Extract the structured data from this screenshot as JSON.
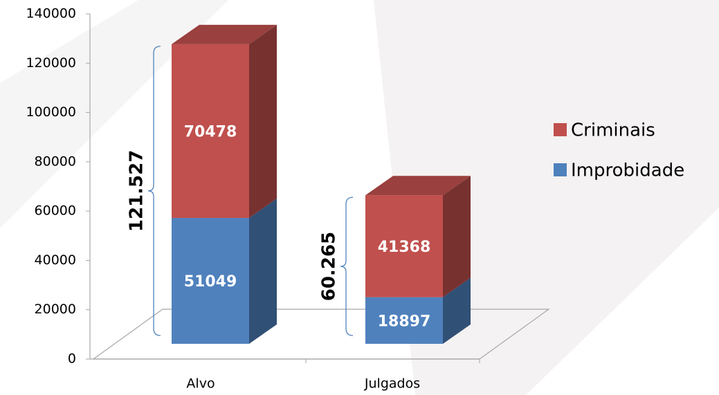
{
  "chart_data": {
    "type": "bar3d_stacked",
    "categories": [
      "Alvo",
      "Julgados"
    ],
    "series": [
      {
        "name": "Improbidade",
        "color": "#4f81bd",
        "values": [
          51049,
          18897
        ]
      },
      {
        "name": "Criminais",
        "color": "#c0504d",
        "values": [
          70478,
          41368
        ]
      }
    ],
    "ylim": [
      0,
      140000
    ],
    "yticks": [
      0,
      20000,
      40000,
      60000,
      80000,
      100000,
      120000,
      140000
    ],
    "annotations": [
      "121.527",
      "60.265"
    ]
  }
}
